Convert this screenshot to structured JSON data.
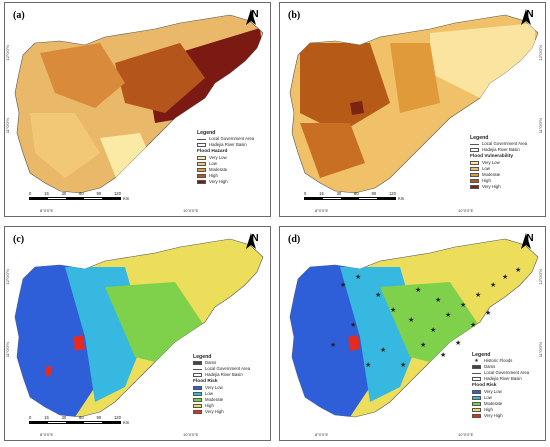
{
  "coords": {
    "lon_a": "8°0'0\"E",
    "lon_b": "10°0'0\"E",
    "lat_top": "12°0'0\"N",
    "lat_bottom": "11°0'0\"N"
  },
  "north_label": "N",
  "scale": {
    "ticks": [
      "0",
      "15",
      "30",
      "60",
      "90",
      "120"
    ],
    "unit": "Km"
  },
  "panels": [
    {
      "label": "(a)",
      "legend": {
        "title": "Legend",
        "base_layers": [
          "Local Government Area",
          "Hadejia River Basin"
        ],
        "subtitle": "Flood Hazard",
        "classes": [
          "Very Low",
          "Low",
          "Moderate",
          "High",
          "Very High"
        ],
        "colors": [
          "#fbeaa6",
          "#f2c877",
          "#e29a3e",
          "#b4551c",
          "#7a1a12"
        ]
      }
    },
    {
      "label": "(b)",
      "legend": {
        "title": "Legend",
        "base_layers": [
          "Local Government Area",
          "Hadejia River Basin"
        ],
        "subtitle": "Flood Vulnerability",
        "classes": [
          "Very Low",
          "Low",
          "Moderate",
          "High",
          "Very High"
        ],
        "colors": [
          "#fbe3a0",
          "#f1c16a",
          "#e09a3a",
          "#b55a17",
          "#7c2412"
        ]
      }
    },
    {
      "label": "(c)",
      "legend": {
        "title": "Legend",
        "base_layers": [
          "Dams",
          "Local Government Area",
          "Hadejia River Basin"
        ],
        "subtitle": "Flood Risk",
        "classes": [
          "Very Low",
          "Low",
          "Moderate",
          "High",
          "Very High"
        ],
        "colors": [
          "#2f5fd8",
          "#36b8e0",
          "#7fd04a",
          "#ecde5a",
          "#e42b22"
        ]
      }
    },
    {
      "label": "(d)",
      "legend": {
        "title": "Legend",
        "base_layers": [
          "Historic Floods",
          "Dams",
          "Local Government Area",
          "Hadejia River Basin"
        ],
        "subtitle": "Flood Risk",
        "classes": [
          "Very Low",
          "Low",
          "Moderate",
          "High",
          "Very High"
        ],
        "colors": [
          "#2f5fd8",
          "#36b8e0",
          "#7fd04a",
          "#ecde5a",
          "#e42b22"
        ]
      }
    }
  ]
}
